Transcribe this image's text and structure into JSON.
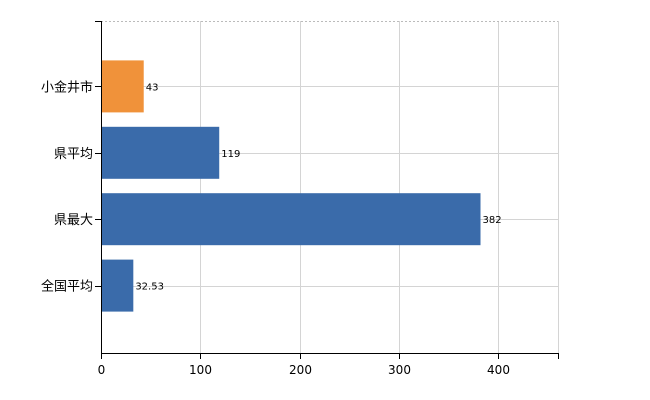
{
  "chart_data": {
    "type": "bar",
    "orientation": "horizontal",
    "categories": [
      "小金井市",
      "県平均",
      "県最大",
      "全国平均"
    ],
    "values": [
      43,
      119,
      382,
      32.53
    ],
    "value_labels": [
      "43",
      "119",
      "382",
      "32.53"
    ],
    "bar_colors": [
      "#F0923A",
      "#3A6BAA",
      "#3A6BAA",
      "#3A6BAA"
    ],
    "xlim": [
      0,
      460
    ],
    "xticks": [
      0,
      100,
      200,
      300,
      400
    ],
    "xtick_labels": [
      "0",
      "100",
      "200",
      "300",
      "400"
    ],
    "grid": true,
    "title": "",
    "xlabel": "",
    "ylabel": ""
  }
}
